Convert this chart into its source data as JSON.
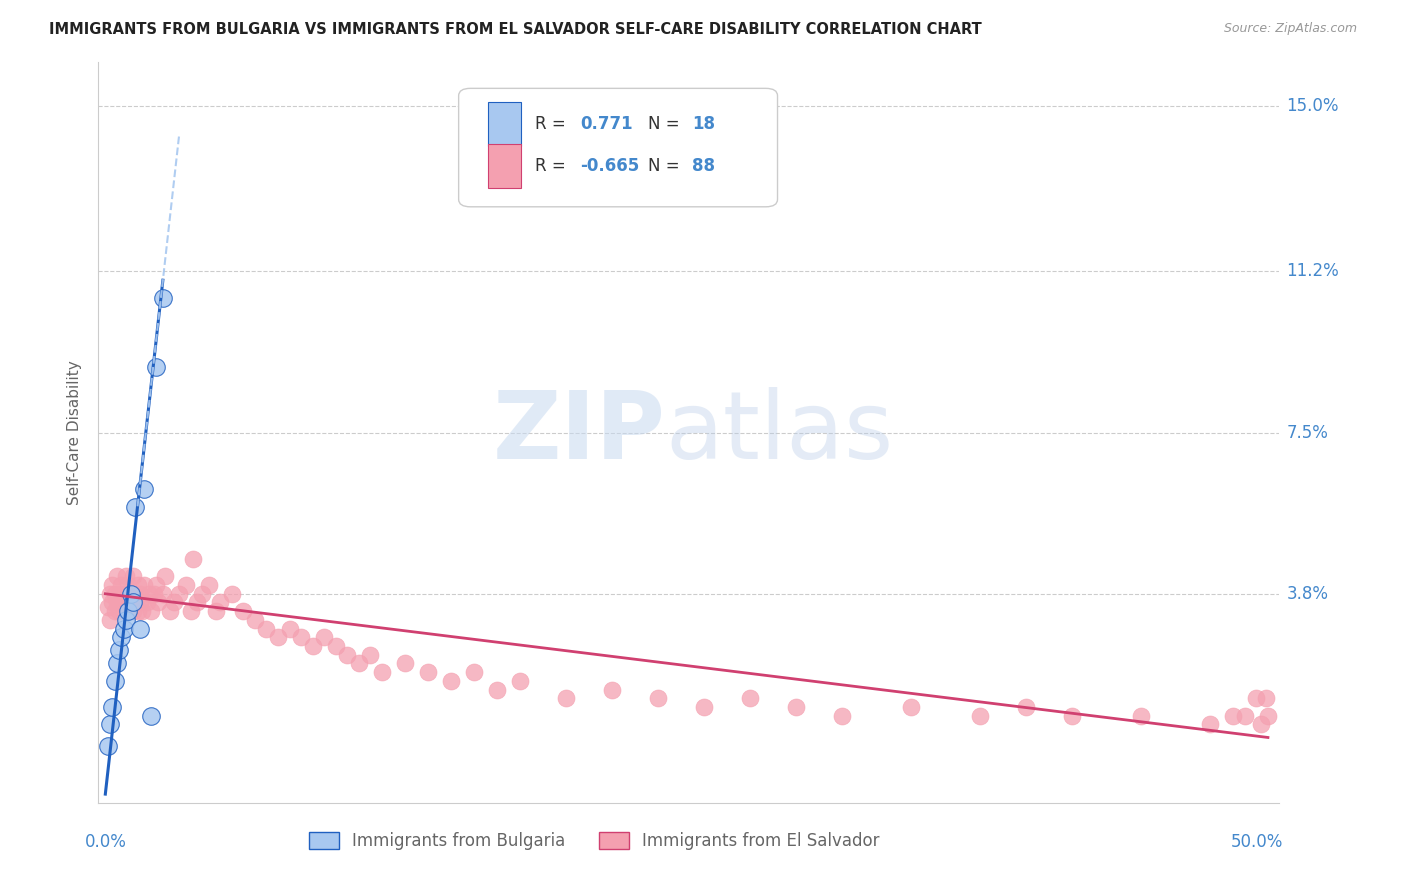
{
  "title": "IMMIGRANTS FROM BULGARIA VS IMMIGRANTS FROM EL SALVADOR SELF-CARE DISABILITY CORRELATION CHART",
  "source": "Source: ZipAtlas.com",
  "ylabel": "Self-Care Disability",
  "yticks": [
    0.0,
    0.038,
    0.075,
    0.112,
    0.15
  ],
  "ytick_labels": [
    "",
    "3.8%",
    "7.5%",
    "11.2%",
    "15.0%"
  ],
  "xlim": [
    -0.003,
    0.51
  ],
  "ylim": [
    -0.01,
    0.16
  ],
  "color_bulgaria": "#a8c8f0",
  "color_salvador": "#f4a0b0",
  "color_bulgaria_line": "#2060c0",
  "color_salvador_line": "#d04070",
  "color_axis_labels": "#4488cc",
  "background_color": "#ffffff",
  "bulgaria_x": [
    0.001,
    0.002,
    0.003,
    0.004,
    0.005,
    0.006,
    0.007,
    0.008,
    0.009,
    0.01,
    0.011,
    0.012,
    0.013,
    0.015,
    0.017,
    0.02,
    0.022,
    0.025
  ],
  "bulgaria_y": [
    0.003,
    0.008,
    0.012,
    0.018,
    0.022,
    0.025,
    0.028,
    0.03,
    0.032,
    0.034,
    0.038,
    0.036,
    0.058,
    0.03,
    0.062,
    0.01,
    0.09,
    0.106
  ],
  "salvador_x": [
    0.001,
    0.002,
    0.002,
    0.003,
    0.003,
    0.004,
    0.004,
    0.005,
    0.005,
    0.006,
    0.006,
    0.007,
    0.007,
    0.008,
    0.008,
    0.009,
    0.009,
    0.01,
    0.01,
    0.011,
    0.011,
    0.012,
    0.012,
    0.013,
    0.014,
    0.014,
    0.015,
    0.015,
    0.016,
    0.017,
    0.018,
    0.019,
    0.02,
    0.021,
    0.022,
    0.023,
    0.025,
    0.026,
    0.028,
    0.03,
    0.032,
    0.035,
    0.037,
    0.038,
    0.04,
    0.042,
    0.045,
    0.048,
    0.05,
    0.055,
    0.06,
    0.065,
    0.07,
    0.075,
    0.08,
    0.085,
    0.09,
    0.095,
    0.1,
    0.105,
    0.11,
    0.115,
    0.12,
    0.13,
    0.14,
    0.15,
    0.16,
    0.17,
    0.18,
    0.2,
    0.22,
    0.24,
    0.26,
    0.28,
    0.3,
    0.32,
    0.35,
    0.38,
    0.4,
    0.42,
    0.45,
    0.48,
    0.49,
    0.495,
    0.5,
    0.502,
    0.504,
    0.505
  ],
  "salvador_y": [
    0.035,
    0.032,
    0.038,
    0.036,
    0.04,
    0.034,
    0.038,
    0.036,
    0.042,
    0.034,
    0.038,
    0.036,
    0.04,
    0.034,
    0.038,
    0.036,
    0.042,
    0.034,
    0.04,
    0.036,
    0.038,
    0.034,
    0.042,
    0.036,
    0.034,
    0.04,
    0.036,
    0.038,
    0.034,
    0.04,
    0.036,
    0.038,
    0.034,
    0.038,
    0.04,
    0.036,
    0.038,
    0.042,
    0.034,
    0.036,
    0.038,
    0.04,
    0.034,
    0.046,
    0.036,
    0.038,
    0.04,
    0.034,
    0.036,
    0.038,
    0.034,
    0.032,
    0.03,
    0.028,
    0.03,
    0.028,
    0.026,
    0.028,
    0.026,
    0.024,
    0.022,
    0.024,
    0.02,
    0.022,
    0.02,
    0.018,
    0.02,
    0.016,
    0.018,
    0.014,
    0.016,
    0.014,
    0.012,
    0.014,
    0.012,
    0.01,
    0.012,
    0.01,
    0.012,
    0.01,
    0.01,
    0.008,
    0.01,
    0.01,
    0.014,
    0.008,
    0.014,
    0.01
  ]
}
